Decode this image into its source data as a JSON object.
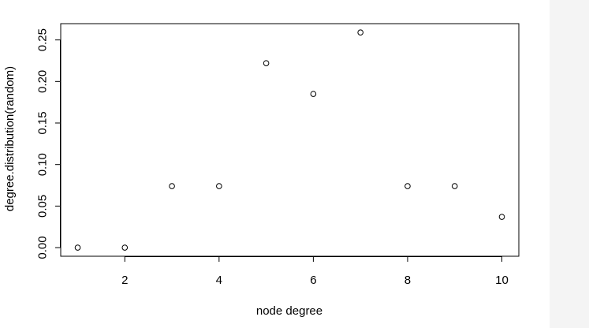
{
  "colors": {
    "background": "#ffffff",
    "side_panel": "#f4f4f4",
    "ink": "#000000"
  },
  "chart_data": {
    "type": "scatter",
    "title": "",
    "xlabel": "node degree",
    "ylabel": "degree.distribution(random)",
    "xlim": [
      0.64,
      10.36
    ],
    "ylim": [
      -0.0104,
      0.2696
    ],
    "x_ticks": [
      2,
      4,
      6,
      8,
      10
    ],
    "x_tick_labels": [
      "2",
      "4",
      "6",
      "8",
      "10"
    ],
    "y_ticks": [
      0.0,
      0.05,
      0.1,
      0.15,
      0.2,
      0.25
    ],
    "y_tick_labels": [
      "0.00",
      "0.05",
      "0.10",
      "0.15",
      "0.20",
      "0.25"
    ],
    "grid": false,
    "legend": "none",
    "point_style": "open-circle",
    "series": [
      {
        "x": [
          1,
          2,
          3,
          4,
          5,
          6,
          7,
          8,
          9,
          10
        ],
        "y": [
          0.0,
          0.0,
          0.074,
          0.074,
          0.222,
          0.185,
          0.259,
          0.074,
          0.074,
          0.037
        ]
      }
    ]
  }
}
